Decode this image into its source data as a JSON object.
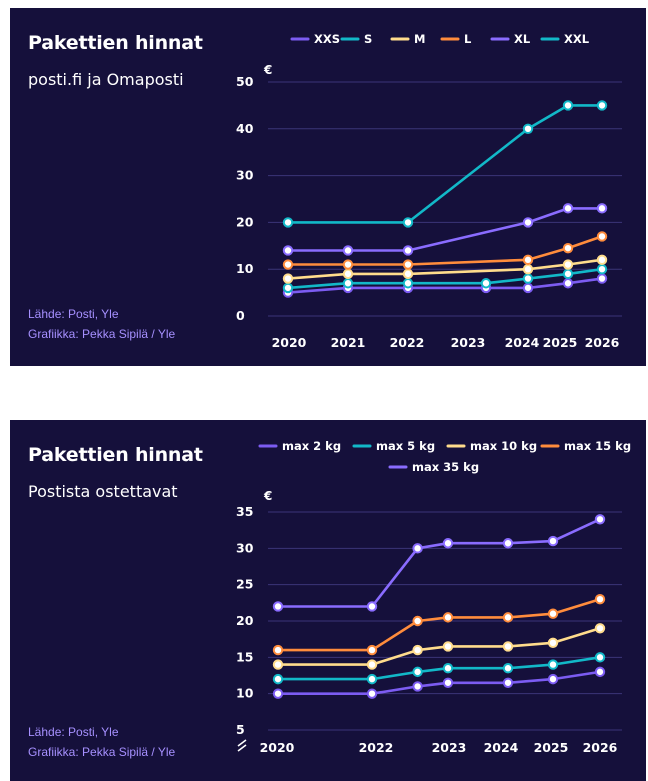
{
  "colors": {
    "background": "#15103b",
    "gridline": "#3b3578",
    "source_text": "#a690ff",
    "text": "#ffffff"
  },
  "chart_data": [
    {
      "type": "line",
      "title": "Pakettien hinnat",
      "subtitle": "posti.fi ja Omaposti",
      "source_lines": [
        "Lähde: Posti, Yle",
        "Grafiikka: Pekka Sipilä  / Yle"
      ],
      "ylabel": "€",
      "ylim": [
        0,
        50
      ],
      "yticks": [
        "0",
        "10",
        "20",
        "30",
        "40",
        "50"
      ],
      "xticks": [
        "2020",
        "2021",
        "2022",
        "2023",
        "2024",
        "2025",
        "2026"
      ],
      "xlim": [
        2020,
        2026
      ],
      "grid": true,
      "legend_position": "top",
      "series": [
        {
          "name": "XXS",
          "color": "#7c5cf2",
          "x": [
            2020,
            2021,
            2022,
            2023.3,
            2024,
            2025,
            2026
          ],
          "values": [
            5,
            6,
            6,
            6,
            6,
            7,
            8
          ]
        },
        {
          "name": "S",
          "color": "#12b8c8",
          "x": [
            2020,
            2021,
            2022,
            2023.3,
            2024,
            2025,
            2026
          ],
          "values": [
            6,
            7,
            7,
            7,
            8,
            9,
            10
          ]
        },
        {
          "name": "M",
          "color": "#ffdc8c",
          "x": [
            2020,
            2021,
            2022,
            2024,
            2025,
            2026
          ],
          "values": [
            8,
            9,
            9,
            10,
            11,
            12
          ]
        },
        {
          "name": "L",
          "color": "#ff8c3c",
          "x": [
            2020,
            2021,
            2022,
            2024,
            2025,
            2026
          ],
          "values": [
            11,
            11,
            11,
            12,
            14.5,
            17
          ]
        },
        {
          "name": "XL",
          "color": "#8a6cff",
          "x": [
            2020,
            2021,
            2022,
            2024,
            2025,
            2026
          ],
          "values": [
            14,
            14,
            14,
            20,
            23,
            23
          ]
        },
        {
          "name": "XXL",
          "color": "#12b8c8",
          "x": [
            2020,
            2022,
            2024,
            2025,
            2026
          ],
          "values": [
            20,
            20,
            40,
            45,
            45
          ]
        }
      ]
    },
    {
      "type": "line",
      "title": "Pakettien hinnat",
      "subtitle": "Postista ostettavat",
      "source_lines": [
        "Lähde: Posti, Yle",
        "Grafiikka: Pekka Sipilä  / Yle"
      ],
      "ylabel": "€",
      "ylim": [
        5,
        35
      ],
      "yticks": [
        "5",
        "10",
        "15",
        "20",
        "25",
        "30",
        "35"
      ],
      "xticks": [
        "2020",
        "2022",
        "2023",
        "2024",
        "2025",
        "2026"
      ],
      "xlim": [
        2020,
        2026
      ],
      "axis_break": true,
      "grid": true,
      "legend_position": "top",
      "series": [
        {
          "name": "max 2 kg",
          "color": "#7c5cf2",
          "x": [
            2020,
            2022,
            2022.6,
            2023,
            2024,
            2025,
            2026
          ],
          "values": [
            10,
            10,
            11,
            11.5,
            11.5,
            12,
            13
          ]
        },
        {
          "name": "max 5 kg",
          "color": "#12b8c8",
          "x": [
            2020,
            2022,
            2022.6,
            2023,
            2024,
            2025,
            2026
          ],
          "values": [
            12,
            12,
            13,
            13.5,
            13.5,
            14,
            15
          ]
        },
        {
          "name": "max 10 kg",
          "color": "#ffdc8c",
          "x": [
            2020,
            2022,
            2022.6,
            2023,
            2024,
            2025,
            2026
          ],
          "values": [
            14,
            14,
            16,
            16.5,
            16.5,
            17,
            19
          ]
        },
        {
          "name": "max 15 kg",
          "color": "#ff8c3c",
          "x": [
            2020,
            2022,
            2022.6,
            2023,
            2024,
            2025,
            2026
          ],
          "values": [
            16,
            16,
            20,
            20.5,
            20.5,
            21,
            23
          ]
        },
        {
          "name": "max 35 kg",
          "color": "#8a6cff",
          "x": [
            2020,
            2022,
            2022.6,
            2023,
            2024,
            2025,
            2026
          ],
          "values": [
            22,
            22,
            30,
            30.7,
            30.7,
            31,
            34
          ]
        }
      ]
    }
  ]
}
